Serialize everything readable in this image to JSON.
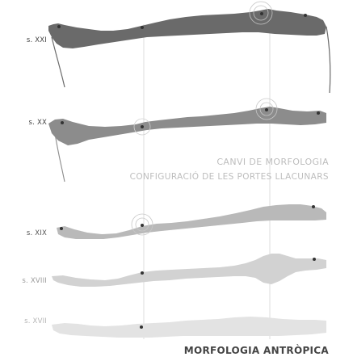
{
  "rows": [
    {
      "key": "xxi",
      "label": "s. XXI"
    },
    {
      "key": "xx",
      "label": "s. XX"
    },
    {
      "key": "xix",
      "label": "s. XIX"
    },
    {
      "key": "xviii",
      "label": "s. XVIII"
    },
    {
      "key": "xvii",
      "label": "s. XVII"
    }
  ],
  "captions": {
    "line1": "CANVI DE MORFOLOGIA",
    "line2": "CONFIGURACIÓ DE LES PORTES LLACUNARS"
  },
  "bottom_title": "MORFOLOGIA ANTRÒPICA",
  "colors": {
    "dark": "#6a6a6a",
    "medium": "#8c8c8c",
    "light": "#b9b9b9",
    "lighter": "#d2d2d2",
    "lightest": "#e3e3e3",
    "caption": "#bdbdbd",
    "guide": "#dedede",
    "title": "#444444"
  }
}
